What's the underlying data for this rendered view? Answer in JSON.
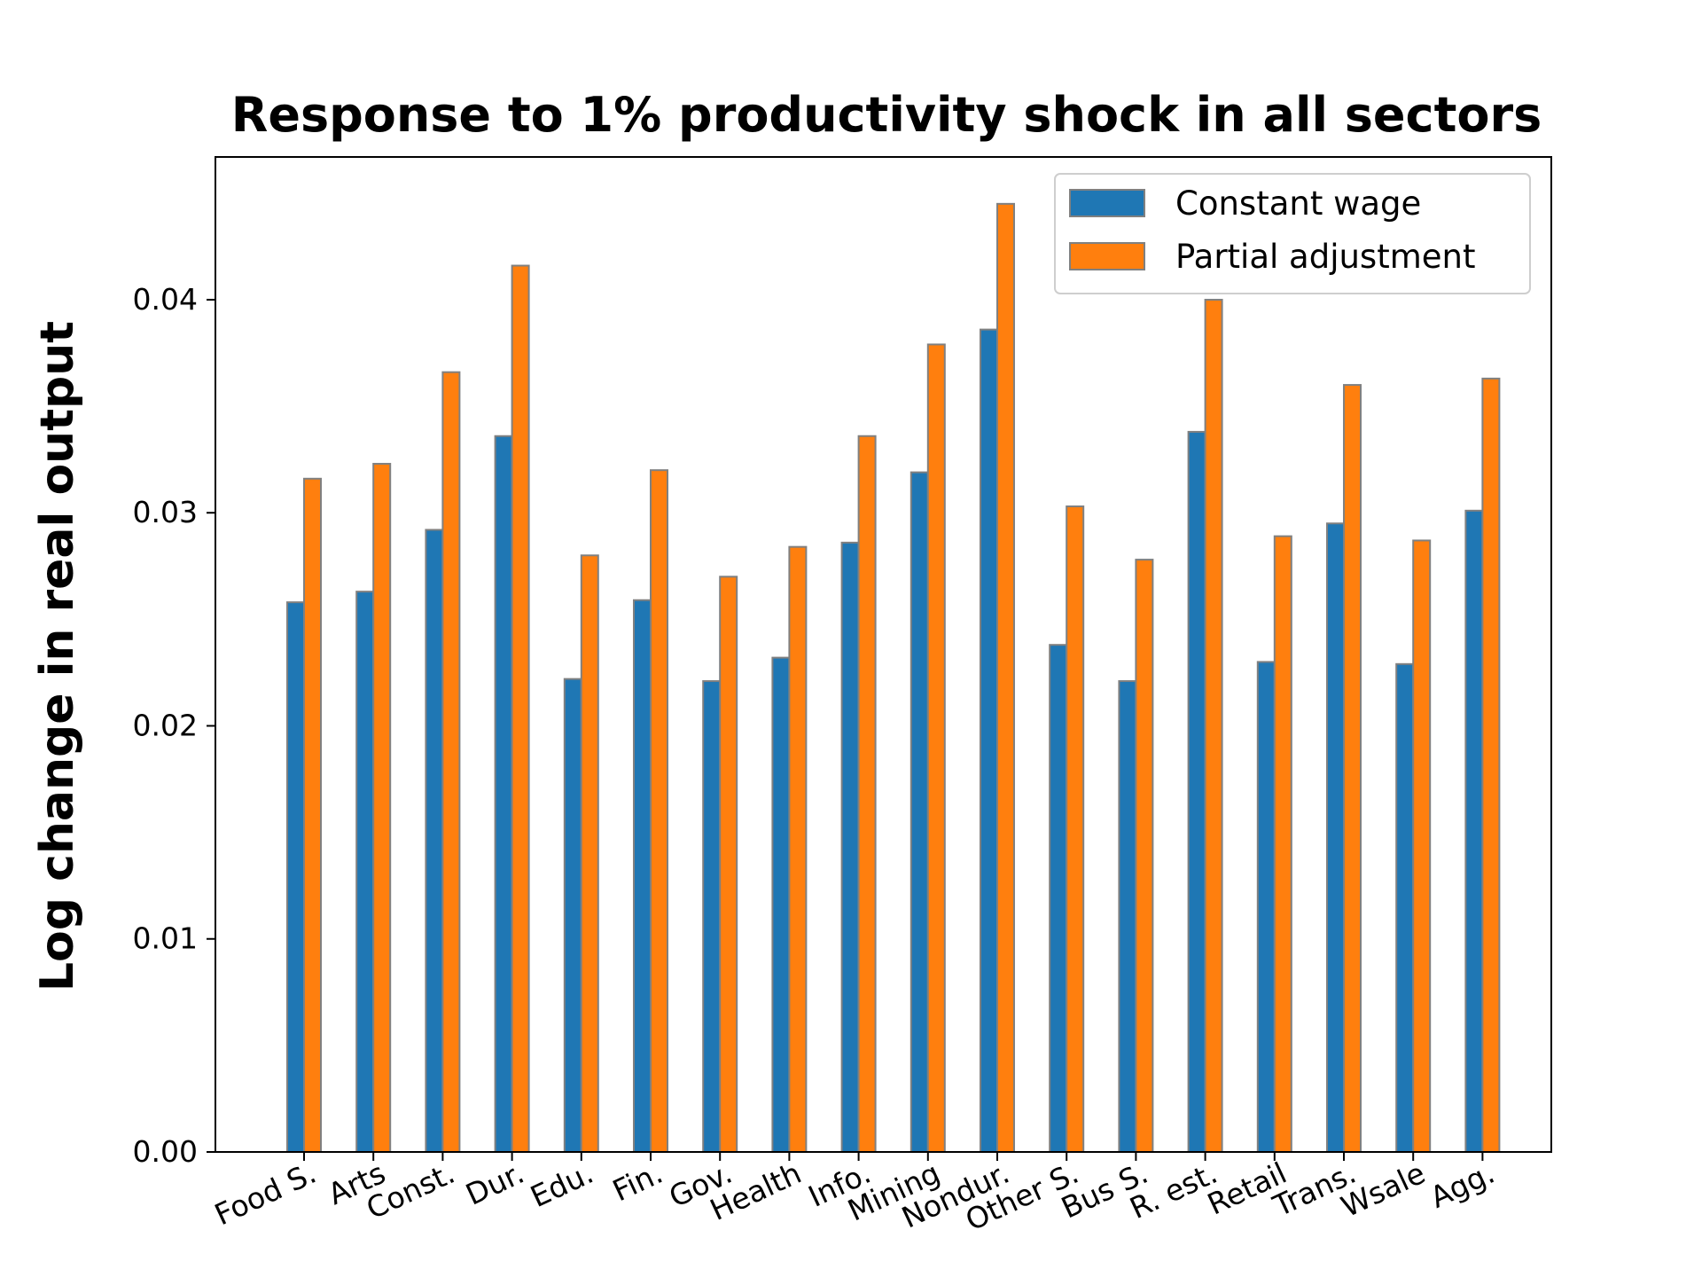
{
  "chart_data": {
    "type": "bar",
    "title": "Response to 1% productivity shock in all sectors",
    "xlabel": "",
    "ylabel": "Log change in real output",
    "categories": [
      "Food S.",
      "Arts",
      "Const.",
      "Dur.",
      "Edu.",
      "Fin.",
      "Gov.",
      "Health",
      "Info.",
      "Mining",
      "Nondur.",
      "Other S.",
      "Bus S.",
      "R. est.",
      "Retail",
      "Trans.",
      "Wsale",
      "Agg."
    ],
    "series": [
      {
        "name": "Constant wage",
        "color": "#1f77b4",
        "values": [
          0.0258,
          0.0263,
          0.0292,
          0.0336,
          0.0222,
          0.0259,
          0.0221,
          0.0232,
          0.0286,
          0.0319,
          0.0386,
          0.0238,
          0.0221,
          0.0338,
          0.023,
          0.0295,
          0.0229,
          0.0301
        ]
      },
      {
        "name": "Partial adjustment",
        "color": "#ff7f0e",
        "values": [
          0.0316,
          0.0323,
          0.0366,
          0.0416,
          0.028,
          0.032,
          0.027,
          0.0284,
          0.0336,
          0.0379,
          0.0445,
          0.0303,
          0.0278,
          0.04,
          0.0289,
          0.036,
          0.0287,
          0.0363
        ]
      }
    ],
    "ylim": [
      0,
      0.0467
    ],
    "yticks": [
      0.0,
      0.01,
      0.02,
      0.03,
      0.04
    ],
    "ytick_labels": [
      "0.00",
      "0.01",
      "0.02",
      "0.03",
      "0.04"
    ],
    "bar_edge_color": "#808080",
    "grid": false,
    "legend_position": "top-right"
  }
}
